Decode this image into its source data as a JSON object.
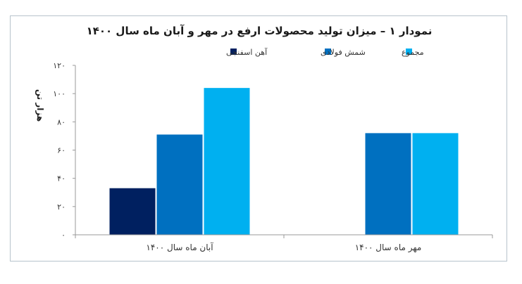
{
  "chart_data": {
    "type": "bar",
    "title": "نمودار ۱ – میزان تولید محصولات ارفع در مهر و آبان ماه سال ۱۴۰۰",
    "ylabel": "هزار تن",
    "xlabel": "",
    "ylim": [
      0,
      120
    ],
    "yticks": [
      0,
      20,
      40,
      60,
      80,
      100,
      120
    ],
    "ytick_labels": [
      "۰",
      "۲۰",
      "۴۰",
      "۶۰",
      "۸۰",
      "۱۰۰",
      "۱۲۰"
    ],
    "categories": [
      "آبان ماه سال ۱۴۰۰",
      "مهر ماه سال ۱۴۰۰"
    ],
    "series": [
      {
        "name": "آهن اسفنجی",
        "color": "#002060",
        "values": [
          33,
          0
        ]
      },
      {
        "name": "شمش فولادی",
        "color": "#0070c0",
        "values": [
          71,
          72
        ]
      },
      {
        "name": "مجموع",
        "color": "#00b0f0",
        "values": [
          104,
          72
        ]
      }
    ],
    "grid": false,
    "legend": "top-center"
  }
}
